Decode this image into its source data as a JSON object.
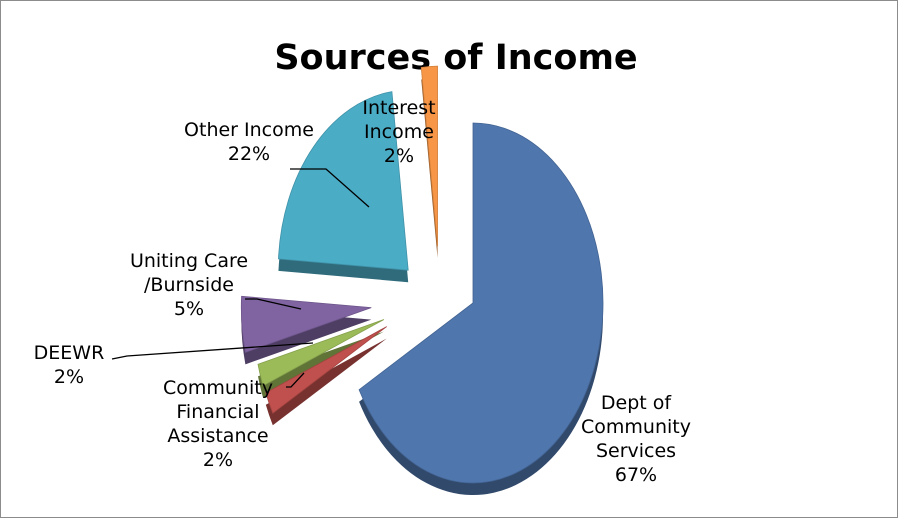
{
  "chart_data": {
    "type": "pie",
    "title": "Sources of Income",
    "style": "3d-exploded",
    "categories": [
      "Dept of Community Services",
      "Community Financial Assistance",
      "DEEWR",
      "Uniting Care /Burnside",
      "Other Income",
      "Interest Income"
    ],
    "values": [
      67,
      2,
      2,
      5,
      22,
      2
    ],
    "unit": "%",
    "colors": [
      "#4f76ad",
      "#c0504d",
      "#9bbb59",
      "#8064a2",
      "#4bacc6",
      "#f79646"
    ],
    "data_labels": [
      {
        "lines": [
          "Dept of",
          "Community",
          "Services",
          "67%"
        ]
      },
      {
        "lines": [
          "Community",
          "Financial",
          "Assistance",
          "2%"
        ]
      },
      {
        "lines": [
          "DEEWR",
          "2%"
        ]
      },
      {
        "lines": [
          "Uniting Care",
          "/Burnside",
          "5%"
        ]
      },
      {
        "lines": [
          "Other Income",
          "22%"
        ]
      },
      {
        "lines": [
          "Interest",
          "Income",
          "2%"
        ]
      }
    ],
    "legend": "none"
  }
}
